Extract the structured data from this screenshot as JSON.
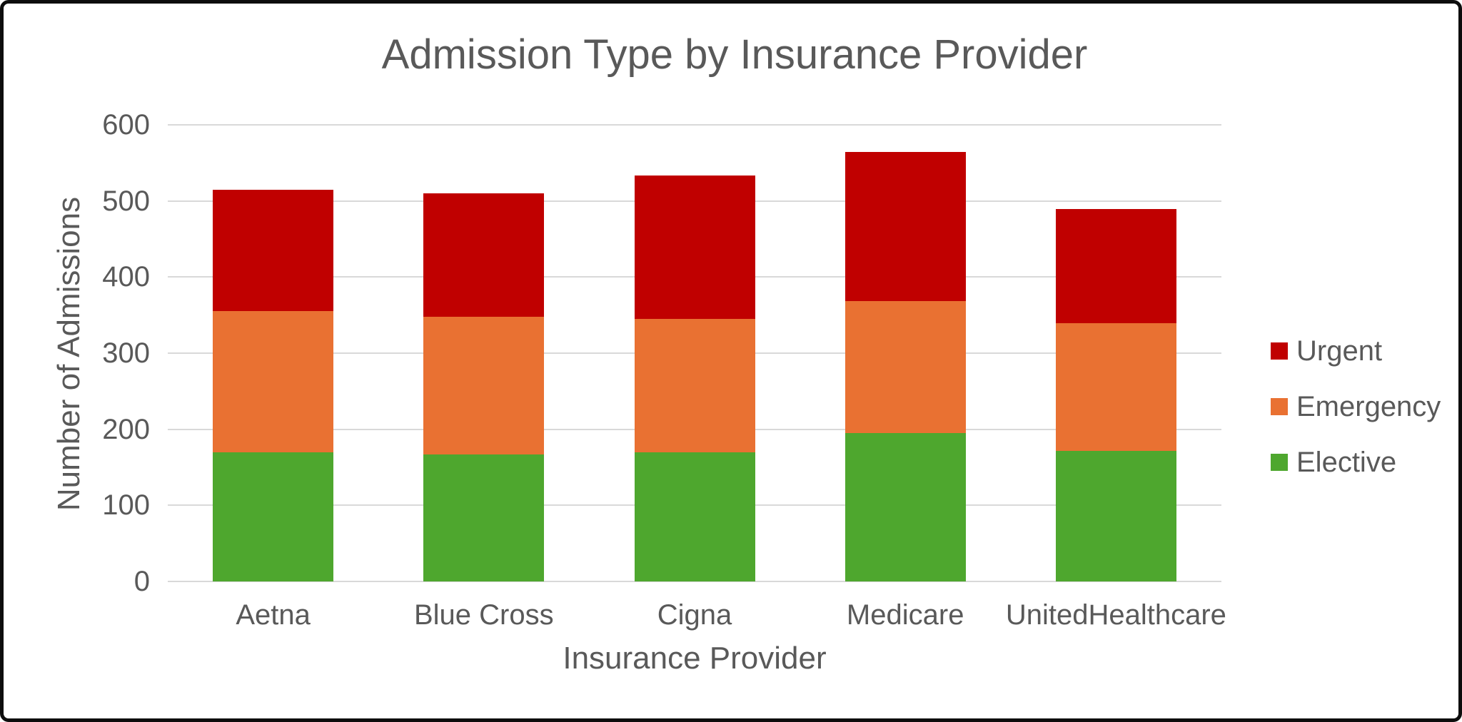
{
  "chart_data": {
    "type": "bar",
    "stacked": true,
    "title": "Admission Type by Insurance Provider",
    "xlabel": "Insurance Provider",
    "ylabel": "Number of Admissions",
    "categories": [
      "Aetna",
      "Blue Cross",
      "Cigna",
      "Medicare",
      "UnitedHealthcare"
    ],
    "series": [
      {
        "name": "Elective",
        "color": "#4EA72E",
        "values": [
          170,
          167,
          170,
          195,
          172
        ]
      },
      {
        "name": "Emergency",
        "color": "#E97132",
        "values": [
          185,
          181,
          175,
          173,
          167
        ]
      },
      {
        "name": "Urgent",
        "color": "#C00000",
        "values": [
          160,
          162,
          188,
          196,
          150
        ]
      }
    ],
    "totals": [
      515,
      510,
      533,
      564,
      489
    ],
    "ylim": [
      0,
      600
    ],
    "yticks": [
      0,
      100,
      200,
      300,
      400,
      500,
      600
    ],
    "grid": true,
    "legend": {
      "position": "right",
      "labels": [
        "Urgent",
        "Emergency",
        "Elective"
      ]
    }
  },
  "style": {
    "text_color": "#595959",
    "gridline_color": "#D9D9D9",
    "background": "#FFFFFF",
    "border_color": "#0D0D0D"
  }
}
